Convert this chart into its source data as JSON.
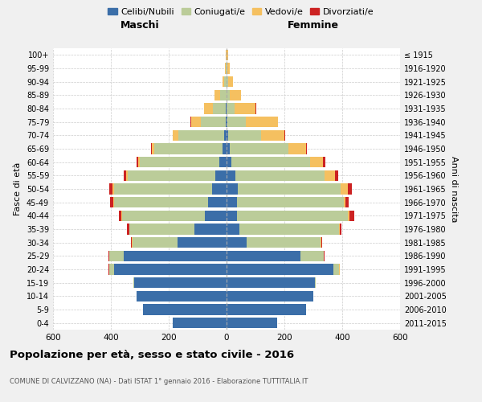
{
  "age_groups": [
    "0-4",
    "5-9",
    "10-14",
    "15-19",
    "20-24",
    "25-29",
    "30-34",
    "35-39",
    "40-44",
    "45-49",
    "50-54",
    "55-59",
    "60-64",
    "65-69",
    "70-74",
    "75-79",
    "80-84",
    "85-89",
    "90-94",
    "95-99",
    "100+"
  ],
  "birth_years": [
    "2011-2015",
    "2006-2010",
    "2001-2005",
    "1996-2000",
    "1991-1995",
    "1986-1990",
    "1981-1985",
    "1976-1980",
    "1971-1975",
    "1966-1970",
    "1961-1965",
    "1956-1960",
    "1951-1955",
    "1946-1950",
    "1941-1945",
    "1936-1940",
    "1931-1935",
    "1926-1930",
    "1921-1925",
    "1916-1920",
    "≤ 1915"
  ],
  "male": {
    "celibe": [
      185,
      290,
      310,
      320,
      390,
      355,
      170,
      110,
      75,
      65,
      50,
      38,
      25,
      15,
      7,
      3,
      2,
      1,
      1,
      0,
      0
    ],
    "coniugato": [
      0,
      0,
      0,
      3,
      15,
      50,
      155,
      225,
      285,
      325,
      340,
      305,
      275,
      235,
      160,
      85,
      45,
      20,
      6,
      2,
      1
    ],
    "vedovo": [
      0,
      0,
      0,
      0,
      1,
      1,
      2,
      2,
      3,
      3,
      5,
      5,
      5,
      8,
      18,
      35,
      30,
      20,
      8,
      4,
      2
    ],
    "divorziato": [
      0,
      0,
      0,
      0,
      1,
      2,
      4,
      7,
      9,
      10,
      10,
      8,
      6,
      4,
      2,
      1,
      1,
      0,
      0,
      0,
      0
    ]
  },
  "female": {
    "nubile": [
      175,
      275,
      300,
      305,
      370,
      255,
      70,
      45,
      35,
      35,
      40,
      30,
      18,
      10,
      5,
      2,
      1,
      1,
      1,
      0,
      0
    ],
    "coniugata": [
      0,
      0,
      0,
      4,
      20,
      80,
      255,
      345,
      385,
      370,
      355,
      310,
      270,
      205,
      115,
      65,
      28,
      10,
      4,
      2,
      1
    ],
    "vedova": [
      0,
      0,
      0,
      0,
      1,
      1,
      2,
      2,
      4,
      6,
      25,
      35,
      45,
      60,
      80,
      110,
      72,
      40,
      18,
      9,
      4
    ],
    "divorziata": [
      0,
      0,
      0,
      0,
      1,
      2,
      4,
      4,
      18,
      12,
      12,
      10,
      8,
      4,
      2,
      1,
      1,
      0,
      0,
      0,
      0
    ]
  },
  "colors": {
    "celibe": "#3B6EA8",
    "coniugato": "#BBCC99",
    "vedovo": "#F5C060",
    "divorziato": "#CC2222"
  },
  "legend_labels": [
    "Celibi/Nubili",
    "Coniugati/e",
    "Vedovi/e",
    "Divorziati/e"
  ],
  "xlim": 600,
  "title": "Popolazione per età, sesso e stato civile - 2016",
  "subtitle": "COMUNE DI CALVIZZANO (NA) - Dati ISTAT 1° gennaio 2016 - Elaborazione TUTTITALIA.IT",
  "xlabel_left": "Maschi",
  "xlabel_right": "Femmine",
  "ylabel_left": "Fasce di età",
  "ylabel_right": "Anni di nascita",
  "bg_color": "#f0f0f0",
  "plot_bg": "#ffffff"
}
